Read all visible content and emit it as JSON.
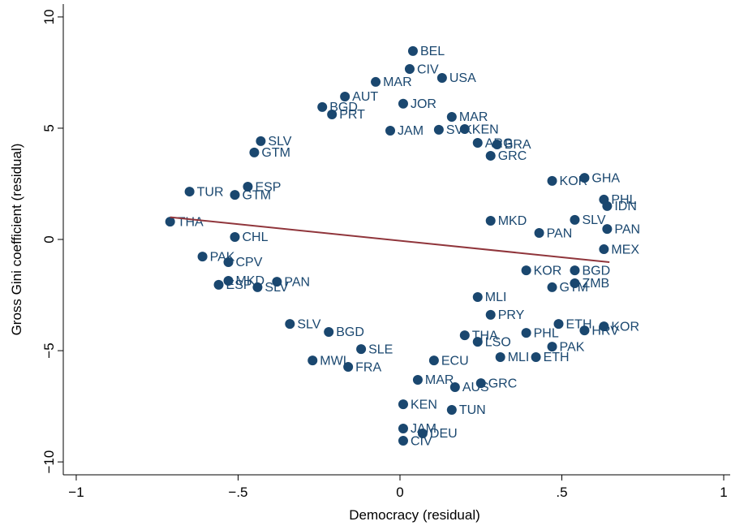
{
  "chart_data": {
    "type": "scatter",
    "x_label": "Democracy (residual)",
    "y_label": "Gross Gini coefficient (residual)",
    "xlim": [
      -1.04,
      1.02
    ],
    "ylim": [
      -10.58,
      10.58
    ],
    "xticks": [
      {
        "value": -1,
        "label": "−1"
      },
      {
        "value": -0.5,
        "label": "−.5"
      },
      0,
      {
        "value": 0.5,
        "label": ".5"
      },
      1
    ],
    "yticks": [
      {
        "value": -10,
        "label": "−10"
      },
      {
        "value": -5,
        "label": "−5"
      },
      0,
      5,
      10
    ],
    "color": "#1a476f",
    "labels": [
      "BEL",
      "CIV",
      "USA",
      "MAR",
      "AUT",
      "BGD",
      "PRT",
      "SLV",
      "GTM",
      "TUR",
      "GTM",
      "ESP",
      "THA",
      "CHL",
      "PAK",
      "CPV",
      "ESP",
      "MKD",
      "SLV",
      "PAN",
      "SLV",
      "BGD",
      "MWI",
      "FRA",
      "KEN",
      "JAM",
      "CIV",
      "DEU",
      "TUN",
      "AUS",
      "GRC",
      "MAR",
      "ECU",
      "MLI",
      "ETH",
      "PHL",
      "PAK",
      "ETH",
      "HRV",
      "KOR",
      "KOR",
      "BGD",
      "ZMB",
      "GTM",
      "MEX",
      "PAN",
      "SLV",
      "IDN",
      "PHL",
      "GHA",
      "KOR",
      "SLE",
      "LSO",
      "THA",
      "MLI",
      "PRY",
      "MKD",
      "PAN",
      "ARG",
      "BRA",
      "GRC",
      "JOR",
      "MAR",
      "KEN",
      "JAM",
      "SVK"
    ],
    "x": [
      0.04,
      0.03,
      0.13,
      -0.075,
      -0.17,
      -0.24,
      -0.21,
      -0.43,
      -0.45,
      -0.65,
      -0.51,
      -0.47,
      -0.71,
      -0.51,
      -0.61,
      -0.53,
      -0.56,
      -0.53,
      -0.44,
      -0.38,
      -0.34,
      -0.22,
      -0.27,
      -0.16,
      0.01,
      0.01,
      0.01,
      0.07,
      0.16,
      0.17,
      0.25,
      0.055,
      0.105,
      0.31,
      0.42,
      0.39,
      0.47,
      0.49,
      0.57,
      0.63,
      0.39,
      0.54,
      0.54,
      0.47,
      0.63,
      0.64,
      0.54,
      0.64,
      0.63,
      0.57,
      0.47,
      -0.12,
      0.24,
      0.2,
      0.24,
      0.28,
      0.28,
      0.43,
      0.24,
      0.3,
      0.28,
      0.01,
      0.16,
      0.2,
      -0.03,
      0.12
    ],
    "y": [
      8.47,
      7.66,
      7.26,
      7.08,
      6.42,
      5.95,
      5.62,
      4.42,
      3.91,
      2.15,
      2.0,
      2.37,
      0.8,
      0.11,
      -0.77,
      -1.02,
      -2.04,
      -1.86,
      -2.15,
      -1.9,
      -3.8,
      -4.16,
      -5.44,
      -5.73,
      -7.41,
      -8.5,
      -9.05,
      -8.72,
      -7.66,
      -6.64,
      -6.46,
      -6.31,
      -5.44,
      -5.29,
      -5.29,
      -4.2,
      -4.82,
      -3.8,
      -4.09,
      -3.91,
      -1.39,
      -1.39,
      -1.97,
      -2.15,
      -0.44,
      0.47,
      0.88,
      1.5,
      1.79,
      2.77,
      2.63,
      -4.93,
      -4.6,
      -4.31,
      -2.59,
      -3.39,
      0.84,
      0.29,
      4.34,
      4.27,
      3.76,
      6.1,
      5.51,
      4.96,
      4.89,
      4.93
    ],
    "fit_line": {
      "x": [
        -0.71,
        0.647
      ],
      "y": [
        1.0,
        -1.02
      ],
      "color": "#90353b"
    }
  }
}
